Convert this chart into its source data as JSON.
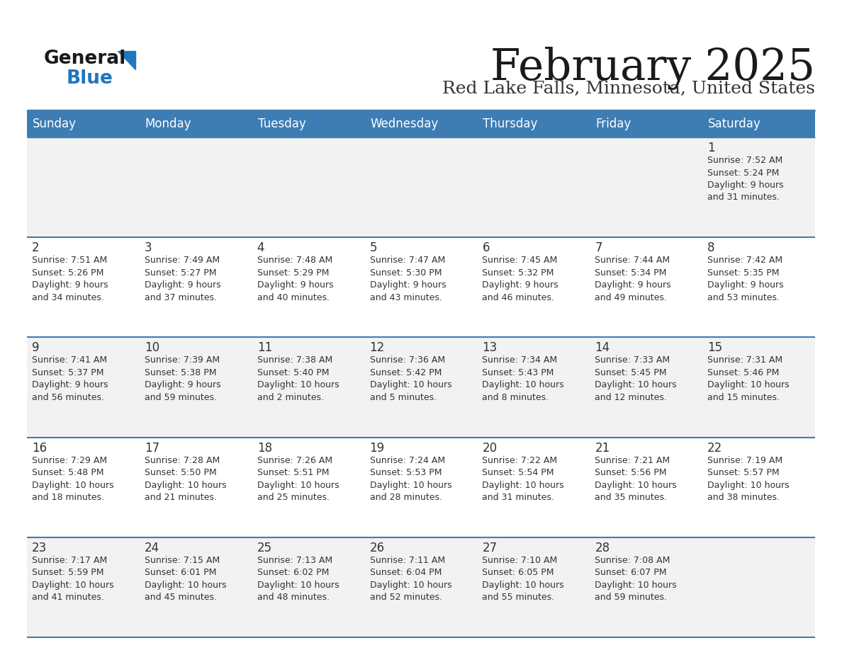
{
  "title": "February 2025",
  "subtitle": "Red Lake Falls, Minnesota, United States",
  "header_bg": "#3d7db3",
  "header_text_color": "#ffffff",
  "cell_bg_odd": "#f2f2f2",
  "cell_bg_even": "#ffffff",
  "border_color": "#3d7db3",
  "title_color": "#1a1a1a",
  "subtitle_color": "#333333",
  "logo_general_color": "#1a1a1a",
  "logo_blue_color": "#2176be",
  "text_color": "#333333",
  "day_headers": [
    "Sunday",
    "Monday",
    "Tuesday",
    "Wednesday",
    "Thursday",
    "Friday",
    "Saturday"
  ],
  "days": [
    {
      "day": 1,
      "col": 6,
      "row": 0,
      "sunrise": "7:52 AM",
      "sunset": "5:24 PM",
      "daylight_h": "9 hours",
      "daylight_m": "31 minutes"
    },
    {
      "day": 2,
      "col": 0,
      "row": 1,
      "sunrise": "7:51 AM",
      "sunset": "5:26 PM",
      "daylight_h": "9 hours",
      "daylight_m": "34 minutes"
    },
    {
      "day": 3,
      "col": 1,
      "row": 1,
      "sunrise": "7:49 AM",
      "sunset": "5:27 PM",
      "daylight_h": "9 hours",
      "daylight_m": "37 minutes"
    },
    {
      "day": 4,
      "col": 2,
      "row": 1,
      "sunrise": "7:48 AM",
      "sunset": "5:29 PM",
      "daylight_h": "9 hours",
      "daylight_m": "40 minutes"
    },
    {
      "day": 5,
      "col": 3,
      "row": 1,
      "sunrise": "7:47 AM",
      "sunset": "5:30 PM",
      "daylight_h": "9 hours",
      "daylight_m": "43 minutes"
    },
    {
      "day": 6,
      "col": 4,
      "row": 1,
      "sunrise": "7:45 AM",
      "sunset": "5:32 PM",
      "daylight_h": "9 hours",
      "daylight_m": "46 minutes"
    },
    {
      "day": 7,
      "col": 5,
      "row": 1,
      "sunrise": "7:44 AM",
      "sunset": "5:34 PM",
      "daylight_h": "9 hours",
      "daylight_m": "49 minutes"
    },
    {
      "day": 8,
      "col": 6,
      "row": 1,
      "sunrise": "7:42 AM",
      "sunset": "5:35 PM",
      "daylight_h": "9 hours",
      "daylight_m": "53 minutes"
    },
    {
      "day": 9,
      "col": 0,
      "row": 2,
      "sunrise": "7:41 AM",
      "sunset": "5:37 PM",
      "daylight_h": "9 hours",
      "daylight_m": "56 minutes"
    },
    {
      "day": 10,
      "col": 1,
      "row": 2,
      "sunrise": "7:39 AM",
      "sunset": "5:38 PM",
      "daylight_h": "9 hours",
      "daylight_m": "59 minutes"
    },
    {
      "day": 11,
      "col": 2,
      "row": 2,
      "sunrise": "7:38 AM",
      "sunset": "5:40 PM",
      "daylight_h": "10 hours",
      "daylight_m": "2 minutes"
    },
    {
      "day": 12,
      "col": 3,
      "row": 2,
      "sunrise": "7:36 AM",
      "sunset": "5:42 PM",
      "daylight_h": "10 hours",
      "daylight_m": "5 minutes"
    },
    {
      "day": 13,
      "col": 4,
      "row": 2,
      "sunrise": "7:34 AM",
      "sunset": "5:43 PM",
      "daylight_h": "10 hours",
      "daylight_m": "8 minutes"
    },
    {
      "day": 14,
      "col": 5,
      "row": 2,
      "sunrise": "7:33 AM",
      "sunset": "5:45 PM",
      "daylight_h": "10 hours",
      "daylight_m": "12 minutes"
    },
    {
      "day": 15,
      "col": 6,
      "row": 2,
      "sunrise": "7:31 AM",
      "sunset": "5:46 PM",
      "daylight_h": "10 hours",
      "daylight_m": "15 minutes"
    },
    {
      "day": 16,
      "col": 0,
      "row": 3,
      "sunrise": "7:29 AM",
      "sunset": "5:48 PM",
      "daylight_h": "10 hours",
      "daylight_m": "18 minutes"
    },
    {
      "day": 17,
      "col": 1,
      "row": 3,
      "sunrise": "7:28 AM",
      "sunset": "5:50 PM",
      "daylight_h": "10 hours",
      "daylight_m": "21 minutes"
    },
    {
      "day": 18,
      "col": 2,
      "row": 3,
      "sunrise": "7:26 AM",
      "sunset": "5:51 PM",
      "daylight_h": "10 hours",
      "daylight_m": "25 minutes"
    },
    {
      "day": 19,
      "col": 3,
      "row": 3,
      "sunrise": "7:24 AM",
      "sunset": "5:53 PM",
      "daylight_h": "10 hours",
      "daylight_m": "28 minutes"
    },
    {
      "day": 20,
      "col": 4,
      "row": 3,
      "sunrise": "7:22 AM",
      "sunset": "5:54 PM",
      "daylight_h": "10 hours",
      "daylight_m": "31 minutes"
    },
    {
      "day": 21,
      "col": 5,
      "row": 3,
      "sunrise": "7:21 AM",
      "sunset": "5:56 PM",
      "daylight_h": "10 hours",
      "daylight_m": "35 minutes"
    },
    {
      "day": 22,
      "col": 6,
      "row": 3,
      "sunrise": "7:19 AM",
      "sunset": "5:57 PM",
      "daylight_h": "10 hours",
      "daylight_m": "38 minutes"
    },
    {
      "day": 23,
      "col": 0,
      "row": 4,
      "sunrise": "7:17 AM",
      "sunset": "5:59 PM",
      "daylight_h": "10 hours",
      "daylight_m": "41 minutes"
    },
    {
      "day": 24,
      "col": 1,
      "row": 4,
      "sunrise": "7:15 AM",
      "sunset": "6:01 PM",
      "daylight_h": "10 hours",
      "daylight_m": "45 minutes"
    },
    {
      "day": 25,
      "col": 2,
      "row": 4,
      "sunrise": "7:13 AM",
      "sunset": "6:02 PM",
      "daylight_h": "10 hours",
      "daylight_m": "48 minutes"
    },
    {
      "day": 26,
      "col": 3,
      "row": 4,
      "sunrise": "7:11 AM",
      "sunset": "6:04 PM",
      "daylight_h": "10 hours",
      "daylight_m": "52 minutes"
    },
    {
      "day": 27,
      "col": 4,
      "row": 4,
      "sunrise": "7:10 AM",
      "sunset": "6:05 PM",
      "daylight_h": "10 hours",
      "daylight_m": "55 minutes"
    },
    {
      "day": 28,
      "col": 5,
      "row": 4,
      "sunrise": "7:08 AM",
      "sunset": "6:07 PM",
      "daylight_h": "10 hours",
      "daylight_m": "59 minutes"
    }
  ]
}
